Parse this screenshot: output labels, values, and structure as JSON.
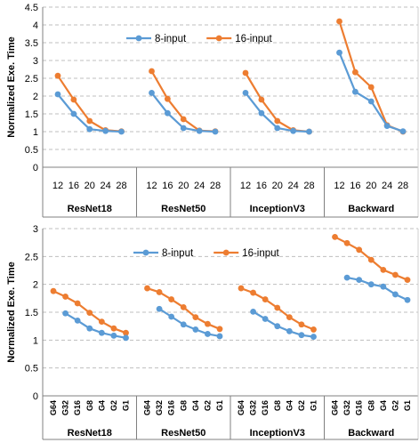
{
  "chart_data": [
    {
      "type": "line",
      "ylabel": "Normalized Exe. Time",
      "ylim": [
        0,
        4.5
      ],
      "yticks": [
        "0",
        "0.5",
        "1",
        "1.5",
        "2",
        "2.5",
        "3",
        "3.5",
        "4",
        "4.5"
      ],
      "grid": "horizontal dashed",
      "legend_position": "top-left of plot",
      "categories": [
        "12",
        "16",
        "20",
        "24",
        "28"
      ],
      "groups": [
        {
          "name": "ResNet18",
          "series": [
            {
              "name": "8-input",
              "values": [
                2.05,
                1.5,
                1.07,
                1.02,
                1.0
              ]
            },
            {
              "name": "16-input",
              "values": [
                2.57,
                1.9,
                1.3,
                1.04,
                1.01
              ]
            }
          ]
        },
        {
          "name": "ResNet50",
          "series": [
            {
              "name": "8-input",
              "values": [
                2.09,
                1.52,
                1.1,
                1.02,
                1.0
              ]
            },
            {
              "name": "16-input",
              "values": [
                2.7,
                1.92,
                1.35,
                1.03,
                1.01
              ]
            }
          ]
        },
        {
          "name": "InceptionV3",
          "series": [
            {
              "name": "8-input",
              "values": [
                2.09,
                1.52,
                1.1,
                1.02,
                1.0
              ]
            },
            {
              "name": "16-input",
              "values": [
                2.65,
                1.9,
                1.3,
                1.04,
                1.0
              ]
            }
          ]
        },
        {
          "name": "Backward",
          "series": [
            {
              "name": "8-input",
              "values": [
                3.22,
                2.12,
                1.85,
                1.16,
                1.01
              ]
            },
            {
              "name": "16-input",
              "values": [
                4.1,
                2.67,
                2.25,
                1.18,
                1.0
              ]
            }
          ]
        }
      ],
      "colors": {
        "8-input": "#5B9BD5",
        "16-input": "#ED7D31"
      }
    },
    {
      "type": "line",
      "ylabel": "Normalized Exe. Time",
      "ylim": [
        0,
        3
      ],
      "yticks": [
        "0",
        "0.5",
        "1",
        "1.5",
        "2",
        "2.5",
        "3"
      ],
      "grid": "horizontal dashed",
      "legend_position": "top-left of plot",
      "categories_16": [
        "G64",
        "G32",
        "G16",
        "G8",
        "G4",
        "G2",
        "G1"
      ],
      "categories_8": [
        "G32",
        "G16",
        "G8",
        "G4",
        "G2",
        "G1"
      ],
      "groups": [
        {
          "name": "ResNet18",
          "series": [
            {
              "name": "8-input",
              "values": [
                1.48,
                1.35,
                1.21,
                1.13,
                1.08,
                1.04
              ]
            },
            {
              "name": "16-input",
              "values": [
                1.88,
                1.78,
                1.66,
                1.49,
                1.33,
                1.21,
                1.13
              ]
            }
          ]
        },
        {
          "name": "ResNet50",
          "series": [
            {
              "name": "8-input",
              "values": [
                1.56,
                1.42,
                1.28,
                1.19,
                1.11,
                1.07
              ]
            },
            {
              "name": "16-input",
              "values": [
                1.93,
                1.86,
                1.73,
                1.59,
                1.41,
                1.29,
                1.2
              ]
            }
          ]
        },
        {
          "name": "InceptionV3",
          "series": [
            {
              "name": "8-input",
              "values": [
                1.51,
                1.38,
                1.25,
                1.16,
                1.09,
                1.06
              ]
            },
            {
              "name": "16-input",
              "values": [
                1.93,
                1.85,
                1.73,
                1.58,
                1.41,
                1.28,
                1.19
              ]
            }
          ]
        },
        {
          "name": "Backward",
          "series": [
            {
              "name": "8-input",
              "values": [
                2.12,
                2.08,
                2.0,
                1.96,
                1.82,
                1.72
              ]
            },
            {
              "name": "16-input",
              "values": [
                2.85,
                2.74,
                2.62,
                2.44,
                2.26,
                2.17,
                2.08
              ]
            }
          ]
        }
      ],
      "colors": {
        "8-input": "#5B9BD5",
        "16-input": "#ED7D31"
      }
    }
  ]
}
